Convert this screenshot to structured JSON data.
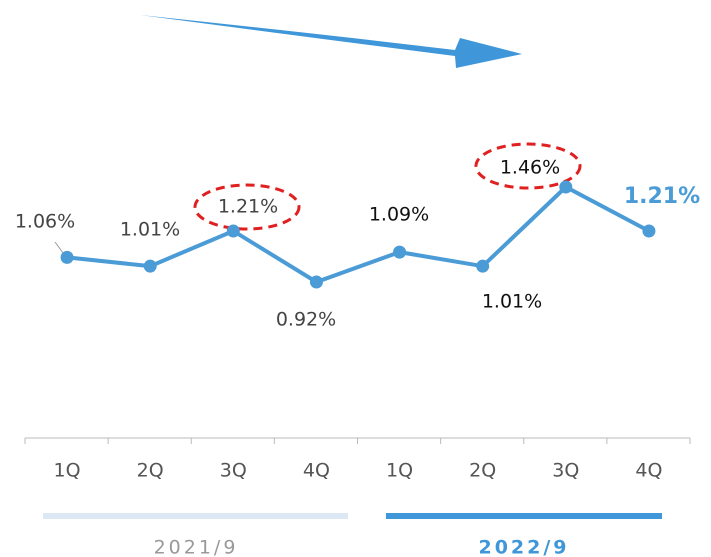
{
  "chart_data": {
    "type": "line",
    "categories": [
      "1Q",
      "2Q",
      "3Q",
      "4Q",
      "1Q",
      "2Q",
      "3Q",
      "4Q"
    ],
    "values": [
      1.06,
      1.01,
      1.21,
      0.92,
      1.09,
      1.01,
      1.46,
      1.21
    ],
    "value_labels": [
      "1.06%",
      "1.01%",
      "1.21%",
      "0.92%",
      "1.09%",
      "1.01%",
      "1.46%",
      "1.21%"
    ],
    "color": "#4a9bd6",
    "groups": [
      "2021/9",
      "2022/9"
    ]
  }
}
